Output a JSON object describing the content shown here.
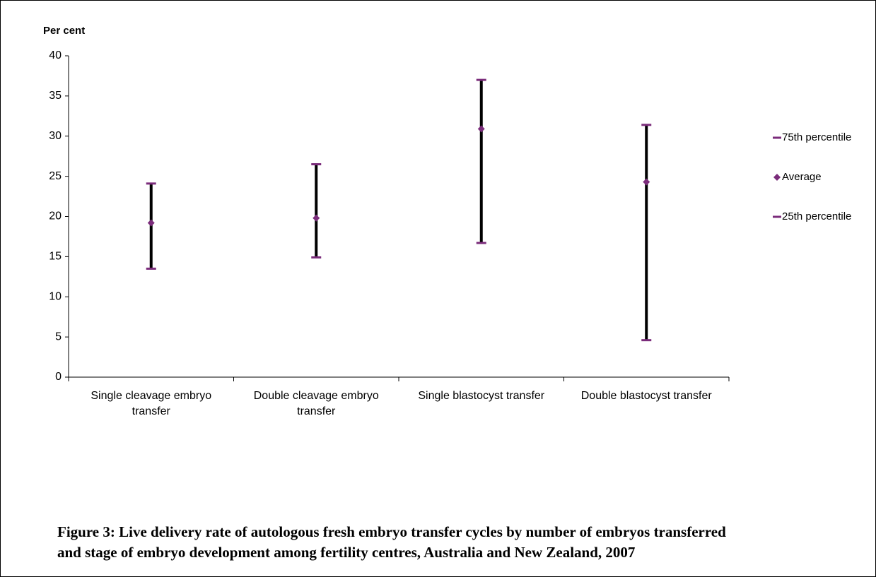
{
  "chart_data": {
    "type": "hilo",
    "title": "Figure 3: Live delivery rate of autologous fresh embryo transfer cycles by number of embryos transferred and stage of embryo development among fertility centres, Australia and New Zealand, 2007",
    "y_label": "Per cent",
    "categories": [
      "Single cleavage embryo transfer",
      "Double cleavage embryo transfer",
      "Single blastocyst transfer",
      "Double blastocyst transfer"
    ],
    "series": [
      {
        "name": "75th percentile",
        "color": "#7b2c7b",
        "marker": "dash",
        "values": [
          24.1,
          26.5,
          37.0,
          31.4
        ]
      },
      {
        "name": "Average",
        "color": "#7b2c7b",
        "marker": "diamond",
        "values": [
          19.2,
          19.8,
          30.9,
          24.3
        ]
      },
      {
        "name": "25th percentile",
        "color": "#7b2c7b",
        "marker": "dash",
        "values": [
          13.5,
          14.9,
          16.7,
          4.6
        ]
      }
    ],
    "hilo_color": "#000000",
    "ylim": [
      0,
      40
    ],
    "yticks": [
      0,
      5,
      10,
      15,
      20,
      25,
      30,
      35,
      40
    ],
    "legend": "right"
  }
}
